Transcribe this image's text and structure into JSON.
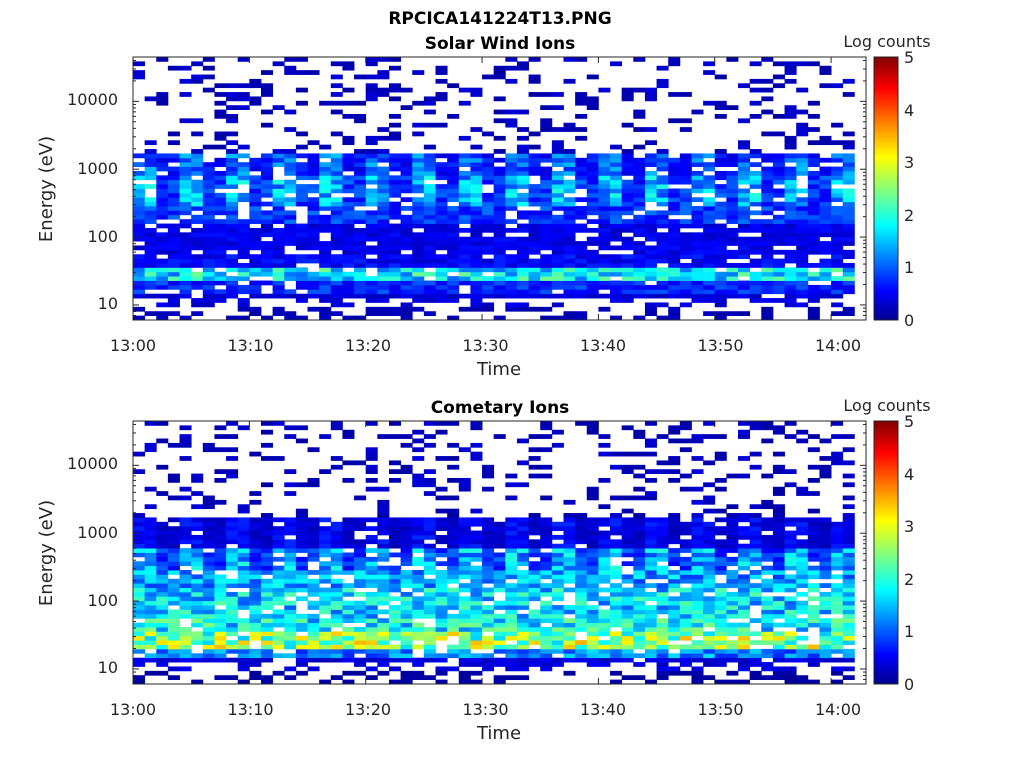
{
  "figure_title": "RPCICA141224T13.PNG",
  "colors": {
    "colormap": "jet",
    "colormap_stops": [
      "#00008f",
      "#0000ff",
      "#00ffff",
      "#ffff00",
      "#ff0000",
      "#800000"
    ],
    "axis": "#262626"
  },
  "chart_data": [
    {
      "type": "heatmap",
      "title": "Solar Wind Ions",
      "xlabel": "Time",
      "ylabel": "Energy (eV)",
      "x_ticks": [
        "13:00",
        "13:10",
        "13:20",
        "13:30",
        "13:40",
        "13:50",
        "14:00"
      ],
      "x_range_min": [
        0,
        63
      ],
      "y_scale": "log",
      "y_range": [
        6,
        45000
      ],
      "y_ticks": [
        "10",
        "100",
        "1000",
        "10000"
      ],
      "colorbar": {
        "label": "Log counts",
        "ticks": [
          "0",
          "1",
          "2",
          "3",
          "4",
          "5"
        ],
        "range": [
          0,
          5
        ]
      },
      "bands": [
        {
          "e_min": 6,
          "e_max": 10,
          "level": 0.2
        },
        {
          "e_min": 10,
          "e_max": 15,
          "level": 0.4
        },
        {
          "e_min": 15,
          "e_max": 22,
          "level": 0.8
        },
        {
          "e_min": 22,
          "e_max": 35,
          "level": 1.9
        },
        {
          "e_min": 35,
          "e_max": 60,
          "level": 0.6
        },
        {
          "e_min": 60,
          "e_max": 150,
          "level": 0.5
        },
        {
          "e_min": 150,
          "e_max": 300,
          "level": 0.9
        },
        {
          "e_min": 300,
          "e_max": 800,
          "level": 1.6
        },
        {
          "e_min": 800,
          "e_max": 1800,
          "level": 1.2
        },
        {
          "e_min": 1800,
          "e_max": 45000,
          "level": 0.3
        }
      ]
    },
    {
      "type": "heatmap",
      "title": "Cometary Ions",
      "xlabel": "Time",
      "ylabel": "Energy (eV)",
      "x_ticks": [
        "13:00",
        "13:10",
        "13:20",
        "13:30",
        "13:40",
        "13:50",
        "14:00"
      ],
      "x_range_min": [
        0,
        63
      ],
      "y_scale": "log",
      "y_range": [
        6,
        45000
      ],
      "y_ticks": [
        "10",
        "100",
        "1000",
        "10000"
      ],
      "colorbar": {
        "label": "Log counts",
        "ticks": [
          "0",
          "1",
          "2",
          "3",
          "4",
          "5"
        ],
        "range": [
          0,
          5
        ]
      },
      "bands": [
        {
          "e_min": 6,
          "e_max": 10,
          "level": 0.1
        },
        {
          "e_min": 10,
          "e_max": 15,
          "level": 0.4
        },
        {
          "e_min": 15,
          "e_max": 20,
          "level": 1.3
        },
        {
          "e_min": 20,
          "e_max": 35,
          "level": 2.8
        },
        {
          "e_min": 35,
          "e_max": 60,
          "level": 2.0
        },
        {
          "e_min": 60,
          "e_max": 150,
          "level": 1.8
        },
        {
          "e_min": 150,
          "e_max": 300,
          "level": 1.5
        },
        {
          "e_min": 300,
          "e_max": 600,
          "level": 1.6
        },
        {
          "e_min": 600,
          "e_max": 1800,
          "level": 0.6
        },
        {
          "e_min": 1800,
          "e_max": 45000,
          "level": 0.3
        }
      ]
    }
  ]
}
